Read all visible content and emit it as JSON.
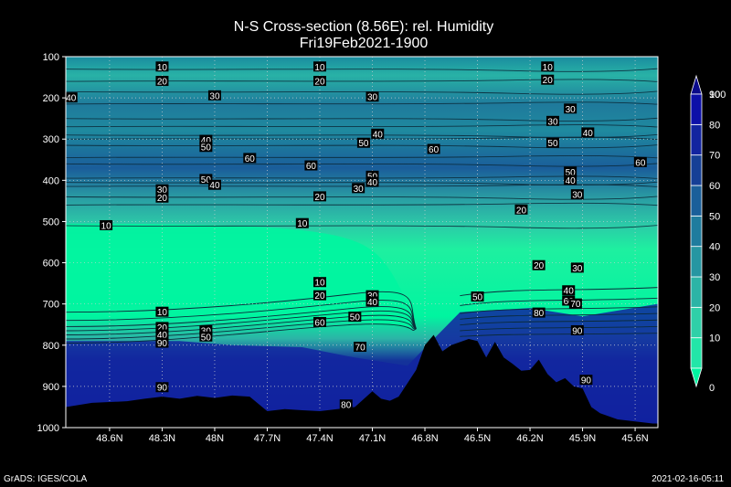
{
  "chart_data": {
    "type": "heatmap",
    "title": "N-S Cross-section (8.56E): rel. Humidity",
    "subtitle": "Fri19Feb2021-1900",
    "x_tick_labels": [
      "48.6N",
      "48.3N",
      "48N",
      "47.7N",
      "47.4N",
      "47.1N",
      "46.8N",
      "46.5N",
      "46.2N",
      "45.9N",
      "45.6N"
    ],
    "x_range": [
      48.85,
      45.47
    ],
    "y_tick_labels": [
      "100",
      "200",
      "300",
      "400",
      "500",
      "600",
      "700",
      "800",
      "900",
      "1000"
    ],
    "y_range": [
      100,
      1000
    ],
    "grid": true,
    "colorbar": {
      "levels": [
        "0",
        "10",
        "20",
        "30",
        "40",
        "50",
        "60",
        "70",
        "80",
        "90",
        "100"
      ],
      "colors": [
        "#00f5a0",
        "#22e6a8",
        "#2fd0a8",
        "#2cb4a6",
        "#2696a2",
        "#1f7c9e",
        "#1a5f9a",
        "#153f96",
        "#1224a0",
        "#0d10a8",
        "#0a0a8a"
      ]
    },
    "contour_labels": [
      {
        "lat": 48.3,
        "p": 125,
        "text": "10"
      },
      {
        "lat": 47.4,
        "p": 125,
        "text": "10"
      },
      {
        "lat": 46.1,
        "p": 125,
        "text": "10"
      },
      {
        "lat": 48.3,
        "p": 160,
        "text": "20"
      },
      {
        "lat": 47.4,
        "p": 160,
        "text": "20"
      },
      {
        "lat": 46.1,
        "p": 157,
        "text": "20"
      },
      {
        "lat": 48.82,
        "p": 200,
        "text": "40"
      },
      {
        "lat": 48,
        "p": 195,
        "text": "30"
      },
      {
        "lat": 47.1,
        "p": 198,
        "text": "30"
      },
      {
        "lat": 45.97,
        "p": 227,
        "text": "30"
      },
      {
        "lat": 46.07,
        "p": 257,
        "text": "30"
      },
      {
        "lat": 45.87,
        "p": 285,
        "text": "40"
      },
      {
        "lat": 48.05,
        "p": 303,
        "text": "40"
      },
      {
        "lat": 48.05,
        "p": 320,
        "text": "50"
      },
      {
        "lat": 47.15,
        "p": 310,
        "text": "50"
      },
      {
        "lat": 47.07,
        "p": 288,
        "text": "40"
      },
      {
        "lat": 46.75,
        "p": 325,
        "text": "60"
      },
      {
        "lat": 46.07,
        "p": 310,
        "text": "50"
      },
      {
        "lat": 47.8,
        "p": 347,
        "text": "60"
      },
      {
        "lat": 47.45,
        "p": 365,
        "text": "60"
      },
      {
        "lat": 45.57,
        "p": 357,
        "text": "60"
      },
      {
        "lat": 48.05,
        "p": 398,
        "text": "50"
      },
      {
        "lat": 48,
        "p": 412,
        "text": "40"
      },
      {
        "lat": 47.1,
        "p": 390,
        "text": "50"
      },
      {
        "lat": 47.1,
        "p": 405,
        "text": "40"
      },
      {
        "lat": 47.18,
        "p": 420,
        "text": "30"
      },
      {
        "lat": 45.97,
        "p": 380,
        "text": "50"
      },
      {
        "lat": 45.97,
        "p": 400,
        "text": "40"
      },
      {
        "lat": 45.93,
        "p": 435,
        "text": "30"
      },
      {
        "lat": 48.3,
        "p": 423,
        "text": "30"
      },
      {
        "lat": 48.3,
        "p": 443,
        "text": "20"
      },
      {
        "lat": 47.4,
        "p": 440,
        "text": "20"
      },
      {
        "lat": 46.25,
        "p": 472,
        "text": "20"
      },
      {
        "lat": 48.62,
        "p": 510,
        "text": "10"
      },
      {
        "lat": 47.5,
        "p": 505,
        "text": "10"
      },
      {
        "lat": 46.15,
        "p": 607,
        "text": "20"
      },
      {
        "lat": 45.93,
        "p": 613,
        "text": "30"
      },
      {
        "lat": 47.4,
        "p": 648,
        "text": "10"
      },
      {
        "lat": 47.4,
        "p": 680,
        "text": "20"
      },
      {
        "lat": 47.1,
        "p": 680,
        "text": "30"
      },
      {
        "lat": 47.1,
        "p": 695,
        "text": "40"
      },
      {
        "lat": 46.5,
        "p": 683,
        "text": "50"
      },
      {
        "lat": 45.98,
        "p": 668,
        "text": "40"
      },
      {
        "lat": 45.98,
        "p": 693,
        "text": "60"
      },
      {
        "lat": 45.94,
        "p": 700,
        "text": "70"
      },
      {
        "lat": 46.15,
        "p": 722,
        "text": "80"
      },
      {
        "lat": 47.2,
        "p": 732,
        "text": "50"
      },
      {
        "lat": 47.4,
        "p": 745,
        "text": "60"
      },
      {
        "lat": 48.3,
        "p": 720,
        "text": "10"
      },
      {
        "lat": 48.3,
        "p": 757,
        "text": "20"
      },
      {
        "lat": 48.05,
        "p": 765,
        "text": "30"
      },
      {
        "lat": 48.3,
        "p": 775,
        "text": "40"
      },
      {
        "lat": 48.05,
        "p": 780,
        "text": "50"
      },
      {
        "lat": 48.3,
        "p": 795,
        "text": "90"
      },
      {
        "lat": 45.93,
        "p": 765,
        "text": "90"
      },
      {
        "lat": 47.17,
        "p": 805,
        "text": "70"
      },
      {
        "lat": 45.88,
        "p": 885,
        "text": "90"
      },
      {
        "lat": 48.3,
        "p": 903,
        "text": "90"
      },
      {
        "lat": 47.25,
        "p": 945,
        "text": "80"
      }
    ],
    "terrain_surface_pressure": [
      [
        48.85,
        950
      ],
      [
        48.7,
        940
      ],
      [
        48.6,
        938
      ],
      [
        48.5,
        936
      ],
      [
        48.4,
        930
      ],
      [
        48.3,
        925
      ],
      [
        48.2,
        930
      ],
      [
        48.1,
        923
      ],
      [
        48,
        928
      ],
      [
        47.9,
        922
      ],
      [
        47.8,
        925
      ],
      [
        47.7,
        960
      ],
      [
        47.6,
        955
      ],
      [
        47.5,
        958
      ],
      [
        47.4,
        960
      ],
      [
        47.3,
        955
      ],
      [
        47.2,
        950
      ],
      [
        47.1,
        912
      ],
      [
        47.05,
        930
      ],
      [
        47,
        935
      ],
      [
        46.95,
        925
      ],
      [
        46.85,
        860
      ],
      [
        46.8,
        800
      ],
      [
        46.75,
        775
      ],
      [
        46.7,
        815
      ],
      [
        46.65,
        800
      ],
      [
        46.55,
        785
      ],
      [
        46.5,
        790
      ],
      [
        46.45,
        830
      ],
      [
        46.4,
        792
      ],
      [
        46.35,
        830
      ],
      [
        46.3,
        845
      ],
      [
        46.25,
        862
      ],
      [
        46.2,
        860
      ],
      [
        46.15,
        835
      ],
      [
        46.1,
        870
      ],
      [
        46.05,
        890
      ],
      [
        46,
        880
      ],
      [
        45.95,
        900
      ],
      [
        45.9,
        905
      ],
      [
        45.85,
        950
      ],
      [
        45.8,
        965
      ],
      [
        45.7,
        980
      ],
      [
        45.6,
        985
      ],
      [
        45.5,
        990
      ],
      [
        45.47,
        990
      ]
    ]
  },
  "footer": {
    "left": "GrADS: IGES/COLA",
    "right": "2021-02-16-05:11"
  }
}
